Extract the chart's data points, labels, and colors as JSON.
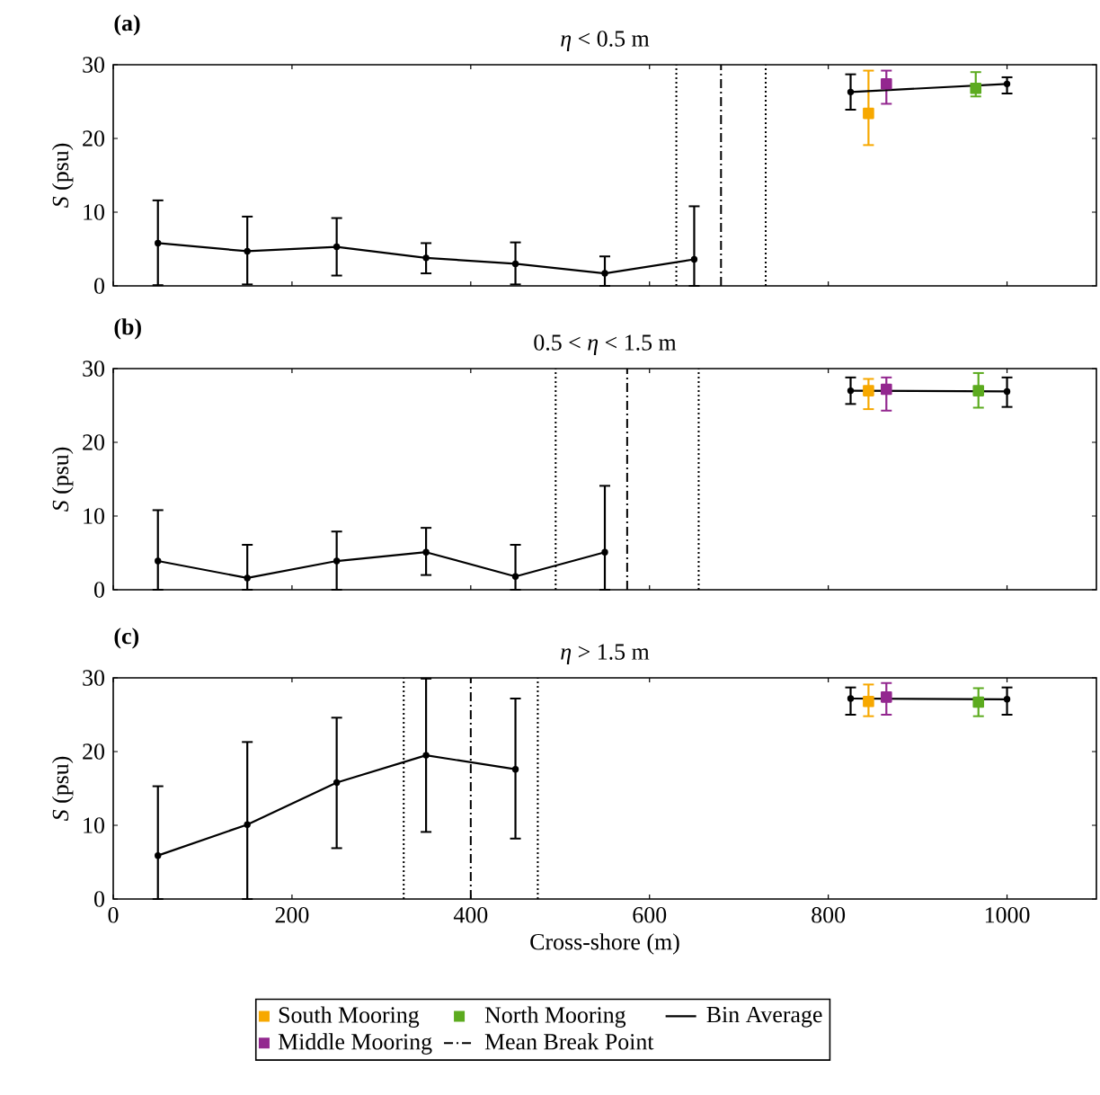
{
  "chart_data": [
    {
      "type": "line",
      "title": "*η* < 0.5 m",
      "ylabel": "*S* (psu)",
      "annotations": [
        "(a)"
      ],
      "xlim": [
        0,
        1100
      ],
      "ylim": [
        0,
        30
      ],
      "xticks": [
        0,
        200,
        400,
        600,
        800,
        1000
      ],
      "yticks": [
        0,
        10,
        20,
        30
      ],
      "tick_labels": "y",
      "series": [
        {
          "type": "scatter",
          "color": "#f7a800",
          "marker": "square",
          "x": [
            845
          ],
          "values": [
            23.4
          ],
          "errors": [
            [
              19.1,
              29.2
            ]
          ]
        },
        {
          "type": "scatter",
          "color": "#93278f",
          "marker": "square",
          "x": [
            865
          ],
          "values": [
            27.4
          ],
          "errors": [
            [
              24.7,
              29.2
            ]
          ]
        },
        {
          "type": "scatter",
          "color": "#5cab1f",
          "marker": "square",
          "x": [
            965
          ],
          "values": [
            26.8
          ],
          "errors": [
            [
              25.7,
              29.0
            ]
          ]
        },
        {
          "color": "#000000",
          "marker": "circle",
          "x": [
            50,
            150,
            250,
            350,
            450,
            550,
            650
          ],
          "values": [
            5.8,
            4.7,
            5.3,
            3.8,
            3.0,
            1.7,
            3.6
          ],
          "errors": [
            [
              0.1,
              11.6
            ],
            [
              0.2,
              9.4
            ],
            [
              1.4,
              9.2
            ],
            [
              1.7,
              5.8
            ],
            [
              0.2,
              5.9
            ],
            [
              0,
              4.0
            ],
            [
              0,
              10.8
            ]
          ]
        },
        {
          "color": "#000000",
          "marker": "circle",
          "x": [
            825,
            1000
          ],
          "values": [
            26.3,
            27.4
          ],
          "errors": [
            [
              23.9,
              28.7
            ],
            [
              26.1,
              28.3
            ]
          ]
        }
      ],
      "ref_lines": [
        {
          "axis": "x",
          "value": 630,
          "line_style": "dotted"
        },
        {
          "axis": "x",
          "value": 680,
          "line_style": "dashed"
        },
        {
          "axis": "x",
          "value": 730,
          "line_style": "dotted"
        }
      ]
    },
    {
      "type": "line",
      "title": "0.5 < *η* < 1.5 m",
      "ylabel": "*S* (psu)",
      "annotations": [
        "(b)"
      ],
      "xlim": [
        0,
        1100
      ],
      "ylim": [
        0,
        30
      ],
      "xticks": [
        0,
        200,
        400,
        600,
        800,
        1000
      ],
      "yticks": [
        0,
        10,
        20,
        30
      ],
      "tick_labels": "y",
      "series": [
        {
          "type": "scatter",
          "color": "#f7a800",
          "marker": "square",
          "x": [
            845
          ],
          "values": [
            27.0
          ],
          "errors": [
            [
              24.5,
              28.6
            ]
          ]
        },
        {
          "type": "scatter",
          "color": "#93278f",
          "marker": "square",
          "x": [
            865
          ],
          "values": [
            27.2
          ],
          "errors": [
            [
              24.3,
              28.8
            ]
          ]
        },
        {
          "type": "scatter",
          "color": "#5cab1f",
          "marker": "square",
          "x": [
            968
          ],
          "values": [
            27.0
          ],
          "errors": [
            [
              24.7,
              29.4
            ]
          ]
        },
        {
          "color": "#000000",
          "marker": "circle",
          "x": [
            50,
            150,
            250,
            350,
            450,
            550
          ],
          "values": [
            3.9,
            1.6,
            3.9,
            5.1,
            1.8,
            5.1
          ],
          "errors": [
            [
              0,
              10.8
            ],
            [
              0,
              6.1
            ],
            [
              0,
              7.9
            ],
            [
              2.0,
              8.4
            ],
            [
              0,
              6.1
            ],
            [
              0,
              14.1
            ]
          ]
        },
        {
          "color": "#000000",
          "marker": "circle",
          "x": [
            825,
            1000
          ],
          "values": [
            27.0,
            26.9
          ],
          "errors": [
            [
              25.2,
              28.8
            ],
            [
              24.8,
              28.8
            ]
          ]
        }
      ],
      "ref_lines": [
        {
          "axis": "x",
          "value": 495,
          "line_style": "dotted"
        },
        {
          "axis": "x",
          "value": 575,
          "line_style": "dashed"
        },
        {
          "axis": "x",
          "value": 655,
          "line_style": "dotted"
        }
      ]
    },
    {
      "type": "line",
      "title": "*η* > 1.5 m",
      "xlabel": "Cross-shore (m)",
      "ylabel": "*S* (psu)",
      "annotations": [
        "(c)"
      ],
      "xlim": [
        0,
        1100
      ],
      "ylim": [
        0,
        30
      ],
      "xticks": [
        0,
        200,
        400,
        600,
        800,
        1000
      ],
      "yticks": [
        0,
        10,
        20,
        30
      ],
      "legend": "bottom",
      "series": [
        {
          "type": "scatter",
          "name": "South Mooring",
          "color": "#f7a800",
          "marker": "square",
          "x": [
            845
          ],
          "values": [
            26.8
          ],
          "errors": [
            [
              24.8,
              29.1
            ]
          ]
        },
        {
          "type": "scatter",
          "name": "Middle Mooring",
          "color": "#93278f",
          "marker": "square",
          "x": [
            865
          ],
          "values": [
            27.4
          ],
          "errors": [
            [
              25.0,
              29.3
            ]
          ]
        },
        {
          "type": "scatter",
          "name": "North Mooring",
          "color": "#5cab1f",
          "marker": "square",
          "x": [
            968
          ],
          "values": [
            26.7
          ],
          "errors": [
            [
              24.8,
              28.6
            ]
          ]
        },
        {
          "name": "Bin Average",
          "color": "#000000",
          "marker": "circle",
          "x": [
            50,
            150,
            250,
            350,
            450
          ],
          "values": [
            5.9,
            10.1,
            15.8,
            19.5,
            17.6
          ],
          "errors": [
            [
              0,
              15.3
            ],
            [
              0,
              21.3
            ],
            [
              6.9,
              24.6
            ],
            [
              9.1,
              29.9
            ],
            [
              8.2,
              27.2
            ]
          ]
        },
        {
          "color": "#000000",
          "marker": "circle",
          "x": [
            825,
            1000
          ],
          "values": [
            27.2,
            27.1
          ],
          "errors": [
            [
              25.0,
              28.7
            ],
            [
              25.0,
              28.7
            ]
          ]
        }
      ],
      "ref_lines": [
        {
          "axis": "x",
          "value": 325,
          "line_style": "dotted"
        },
        {
          "axis": "x",
          "value": 400,
          "line_style": "dashed",
          "label": "Mean Break Point"
        },
        {
          "axis": "x",
          "value": 475,
          "line_style": "dotted"
        }
      ]
    }
  ]
}
